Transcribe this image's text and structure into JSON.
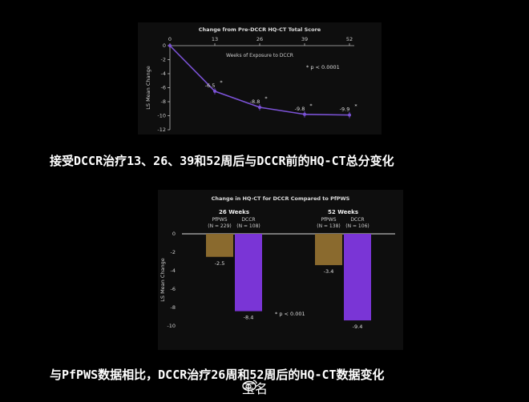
{
  "chart_data": [
    {
      "type": "line",
      "title": "Change from Pre-DCCR HQ-CT Total Score",
      "xlabel": "Weeks of Exposure to DCCR",
      "ylabel": "LS Mean Change",
      "x": [
        0,
        13,
        26,
        39,
        52
      ],
      "xticks": [
        "0",
        "13",
        "26",
        "39",
        "52"
      ],
      "ylim": [
        -12,
        0
      ],
      "yticks": [
        "0",
        "-2",
        "-4",
        "-6",
        "-8",
        "-10",
        "-12"
      ],
      "series": [
        {
          "values": [
            0,
            -6.5,
            -8.8,
            -9.8,
            -9.9
          ],
          "labels": [
            "",
            "-6.5",
            "-8.8",
            "-9.8",
            "-9.9"
          ],
          "marker": "*"
        }
      ],
      "annotation": "* p < 0.0001",
      "color": "#7b52d6"
    },
    {
      "type": "bar",
      "title": "Change in HQ-CT for DCCR Compared to PfPWS",
      "ylabel": "LS Mean Change",
      "ylim": [
        -10,
        0
      ],
      "yticks": [
        "0",
        "-2",
        "-4",
        "-6",
        "-8",
        "-10"
      ],
      "groups": [
        {
          "label": "26 Weeks",
          "bars": [
            {
              "name": "PfPWS",
              "n": "(N = 229)",
              "value": -2.5,
              "label": "-2.5",
              "color": "#8a6a2e"
            },
            {
              "name": "DCCR",
              "n": "(N = 108)",
              "value": -8.4,
              "label": "-8.4",
              "color": "#7a35d6"
            }
          ]
        },
        {
          "label": "52 Weeks",
          "bars": [
            {
              "name": "PfPWS",
              "n": "(N = 138)",
              "value": -3.4,
              "label": "-3.4",
              "color": "#8a6a2e"
            },
            {
              "name": "DCCR",
              "n": "(N = 106)",
              "value": -9.4,
              "label": "-9.4",
              "color": "#7a35d6"
            }
          ]
        }
      ],
      "annotation": "* p < 0.001"
    }
  ],
  "captions": {
    "top": "接受DCCR治疗13、26、39和52周后与DCCR前的HQ-CT总分变化",
    "bottom": "与PfPWS数据相比，DCCR治疗26周和52周后的HQ-CT数据变化"
  },
  "watermark": {
    "icon": "weibo-icon",
    "text": "玉名"
  }
}
